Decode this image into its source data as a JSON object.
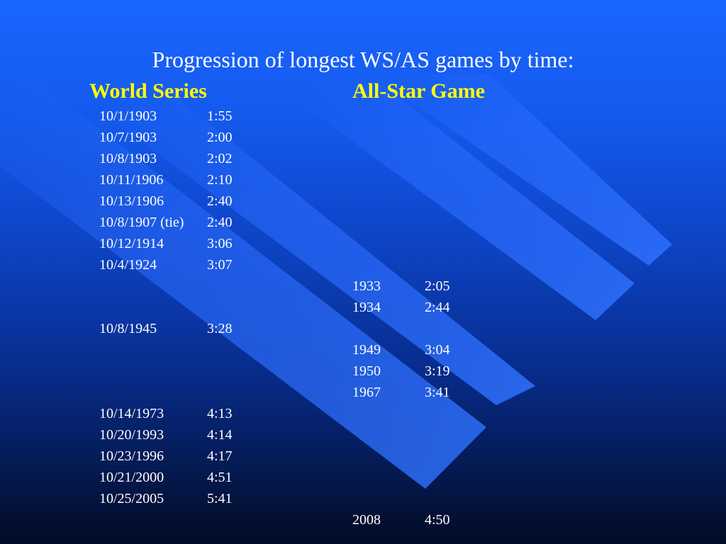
{
  "slide": {
    "title": "Progression of longest WS/AS games by time:",
    "world_series_heading": "World Series",
    "all_star_heading": "All-Star Game"
  },
  "rows": [
    {
      "ws_date": "10/1/1903",
      "ws_time": "1:55",
      "as_year": "",
      "as_time": ""
    },
    {
      "ws_date": "10/7/1903",
      "ws_time": "2:00",
      "as_year": "",
      "as_time": ""
    },
    {
      "ws_date": "10/8/1903",
      "ws_time": "2:02",
      "as_year": "",
      "as_time": ""
    },
    {
      "ws_date": "10/11/1906",
      "ws_time": "2:10",
      "as_year": "",
      "as_time": ""
    },
    {
      "ws_date": "10/13/1906",
      "ws_time": "2:40",
      "as_year": "",
      "as_time": ""
    },
    {
      "ws_date": "10/8/1907 (tie)",
      "ws_time": "2:40",
      "as_year": "",
      "as_time": ""
    },
    {
      "ws_date": "10/12/1914",
      "ws_time": "3:06",
      "as_year": "",
      "as_time": ""
    },
    {
      "ws_date": "10/4/1924",
      "ws_time": "3:07",
      "as_year": "",
      "as_time": ""
    },
    {
      "ws_date": "",
      "ws_time": "",
      "as_year": "1933",
      "as_time": "2:05"
    },
    {
      "ws_date": "",
      "ws_time": "",
      "as_year": "1934",
      "as_time": "2:44"
    },
    {
      "ws_date": "10/8/1945",
      "ws_time": "3:28",
      "as_year": "",
      "as_time": ""
    },
    {
      "ws_date": "",
      "ws_time": "",
      "as_year": "1949",
      "as_time": "3:04"
    },
    {
      "ws_date": "",
      "ws_time": "",
      "as_year": "1950",
      "as_time": "3:19"
    },
    {
      "ws_date": "",
      "ws_time": "",
      "as_year": "1967",
      "as_time": "3:41"
    },
    {
      "ws_date": "10/14/1973",
      "ws_time": "4:13",
      "as_year": "",
      "as_time": ""
    },
    {
      "ws_date": "10/20/1993",
      "ws_time": "4:14",
      "as_year": "",
      "as_time": ""
    },
    {
      "ws_date": "10/23/1996",
      "ws_time": "4:17",
      "as_year": "",
      "as_time": ""
    },
    {
      "ws_date": "10/21/2000",
      "ws_time": "4:51",
      "as_year": "",
      "as_time": ""
    },
    {
      "ws_date": "10/25/2005",
      "ws_time": "5:41",
      "as_year": "",
      "as_time": ""
    },
    {
      "ws_date": "",
      "ws_time": "",
      "as_year": "2008",
      "as_time": "4:50"
    }
  ],
  "colors": {
    "background_top": "#1a66ff",
    "background_bottom": "#020b24",
    "stripe": "#1c5cf0",
    "title_text": "#ffffff",
    "heading_text": "#ffff00",
    "body_text": "#ffffff"
  }
}
